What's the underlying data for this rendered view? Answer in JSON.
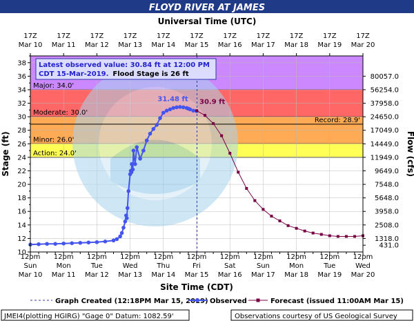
{
  "header": {
    "title": "FLOYD RIVER AT JAMES",
    "top_axis_title": "Universal Time (UTC)"
  },
  "info_box": {
    "line1": "Latest observed value: 30.84 ft at 12:00 PM",
    "line2a": "CDT 15-Mar-2019.",
    "line2b": "Flood Stage is 26 ft"
  },
  "colors": {
    "title_bg": "#1f3b88",
    "major": "#cc88ff",
    "moderate": "#ff6666",
    "minor": "#ffaa55",
    "action": "#ffff55",
    "observed": "#4455ee",
    "forecast": "#770044",
    "record": "#000000"
  },
  "legend": {
    "graph_created": "Graph Created (12:18PM Mar 15, 2019)",
    "observed": "Observed",
    "forecast": "Forecast (issued 11:00AM Mar 15)"
  },
  "footer": {
    "left": "JMEI4(plotting HGIRG) \"Gage 0\" Datum: 1082.59'",
    "right": "Observations courtesy of US Geological Survey"
  },
  "chart_data": {
    "type": "line",
    "xlabel": "Site Time (CDT)",
    "ylabel": "Stage (ft)",
    "y2label": "Flow (cfs)",
    "ylim": [
      10,
      39
    ],
    "xlim": [
      0,
      10
    ],
    "x_unit": "days from 12pm CDT Mar 10",
    "grid": true,
    "yticks": [
      10,
      12,
      14,
      16,
      18,
      20,
      22,
      24,
      26,
      28,
      30,
      32,
      34,
      36,
      38
    ],
    "x_ticks_bottom": [
      {
        "time": "12pm",
        "day": "Sun",
        "date": "Mar 10"
      },
      {
        "time": "12pm",
        "day": "Mon",
        "date": "Mar 11"
      },
      {
        "time": "12pm",
        "day": "Tue",
        "date": "Mar 12"
      },
      {
        "time": "12pm",
        "day": "Wed",
        "date": "Mar 13"
      },
      {
        "time": "12pm",
        "day": "Thu",
        "date": "Mar 14"
      },
      {
        "time": "12pm",
        "day": "Fri",
        "date": "Mar 15"
      },
      {
        "time": "12pm",
        "day": "Sat",
        "date": "Mar 16"
      },
      {
        "time": "12pm",
        "day": "Sun",
        "date": "Mar 17"
      },
      {
        "time": "12pm",
        "day": "Mon",
        "date": "Mar 18"
      },
      {
        "time": "12pm",
        "day": "Tue",
        "date": "Mar 19"
      },
      {
        "time": "12pm",
        "day": "Wed",
        "date": "Mar 20"
      }
    ],
    "x_ticks_top": [
      {
        "time": "17Z",
        "date": "Mar 10"
      },
      {
        "time": "17Z",
        "date": "Mar 11"
      },
      {
        "time": "17Z",
        "date": "Mar 12"
      },
      {
        "time": "17Z",
        "date": "Mar 13"
      },
      {
        "time": "17Z",
        "date": "Mar 14"
      },
      {
        "time": "17Z",
        "date": "Mar 15"
      },
      {
        "time": "17Z",
        "date": "Mar 16"
      },
      {
        "time": "17Z",
        "date": "Mar 17"
      },
      {
        "time": "17Z",
        "date": "Mar 18"
      },
      {
        "time": "17Z",
        "date": "Mar 19"
      },
      {
        "time": "17Z",
        "date": "Mar 20"
      }
    ],
    "flow_ticks": [
      {
        "stage": 11,
        "label": "431.0"
      },
      {
        "stage": 12,
        "label": "1318.0"
      },
      {
        "stage": 14,
        "label": "2508.0"
      },
      {
        "stage": 16,
        "label": "3958.0"
      },
      {
        "stage": 18,
        "label": "5648.0"
      },
      {
        "stage": 20,
        "label": "7548.0"
      },
      {
        "stage": 22,
        "label": "9649.0"
      },
      {
        "stage": 24,
        "label": "11949.0"
      },
      {
        "stage": 26,
        "label": "14449.0"
      },
      {
        "stage": 28,
        "label": "17049.0"
      },
      {
        "stage": 30,
        "label": "24650.0"
      },
      {
        "stage": 32,
        "label": "37958.0"
      },
      {
        "stage": 34,
        "label": "56254.0"
      },
      {
        "stage": 36,
        "label": "80057.0"
      }
    ],
    "flood_categories": [
      {
        "name": "Major: 34.0'",
        "from": 34,
        "to": 39,
        "color": "#cc88ff"
      },
      {
        "name": "Moderate: 30.0'",
        "from": 30,
        "to": 34,
        "color": "#ff6666"
      },
      {
        "name": "Minor: 26.0'",
        "from": 26,
        "to": 30,
        "color": "#ffaa55"
      },
      {
        "name": "Action: 24.0'",
        "from": 24,
        "to": 26,
        "color": "#ffff55"
      }
    ],
    "record": {
      "label": "Record: 28.9'",
      "value": 28.9
    },
    "graph_created_x": 5.01,
    "observed": {
      "name": "Observed",
      "x": [
        0,
        0.25,
        0.5,
        0.75,
        1,
        1.25,
        1.5,
        1.75,
        2,
        2.25,
        2.5,
        2.6,
        2.7,
        2.75,
        2.8,
        2.85,
        2.88,
        2.9,
        2.92,
        2.95,
        3.0,
        3.02,
        3.04,
        3.05,
        3.08,
        3.1,
        3.15,
        3.2,
        3.3,
        3.4,
        3.5,
        3.6,
        3.7,
        3.8,
        3.9,
        4.0,
        4.1,
        4.2,
        4.3,
        4.4,
        4.5,
        4.6,
        4.7,
        4.75,
        4.8,
        4.9,
        5.0
      ],
      "y": [
        11.1,
        11.15,
        11.2,
        11.2,
        11.25,
        11.3,
        11.35,
        11.4,
        11.45,
        11.55,
        11.7,
        11.9,
        12.3,
        12.8,
        13.6,
        14.5,
        15.4,
        15.0,
        16.5,
        19.0,
        21.5,
        22.0,
        21.8,
        23.0,
        22.2,
        25.0,
        23.0,
        25.5,
        23.8,
        25.0,
        26.5,
        27.5,
        28.2,
        28.8,
        29.8,
        30.6,
        30.9,
        31.1,
        31.3,
        31.4,
        31.45,
        31.4,
        31.3,
        31.2,
        31.1,
        30.9,
        30.84
      ],
      "peak_label": "31.48 ft",
      "peak_x": 4.45,
      "peak_y": 31.48
    },
    "forecast": {
      "name": "Forecast",
      "x": [
        5.0,
        5.25,
        5.5,
        5.75,
        6.0,
        6.25,
        6.5,
        6.75,
        7.0,
        7.25,
        7.5,
        7.75,
        8.0,
        8.25,
        8.5,
        8.75,
        9.0,
        9.25,
        9.5,
        9.75,
        10.0
      ],
      "y": [
        30.9,
        30.2,
        29.0,
        27.2,
        24.6,
        21.8,
        19.4,
        17.6,
        16.3,
        15.3,
        14.6,
        13.9,
        13.5,
        13.1,
        12.8,
        12.6,
        12.4,
        12.3,
        12.3,
        12.3,
        12.4
      ],
      "start_label": "30.9 ft"
    }
  }
}
